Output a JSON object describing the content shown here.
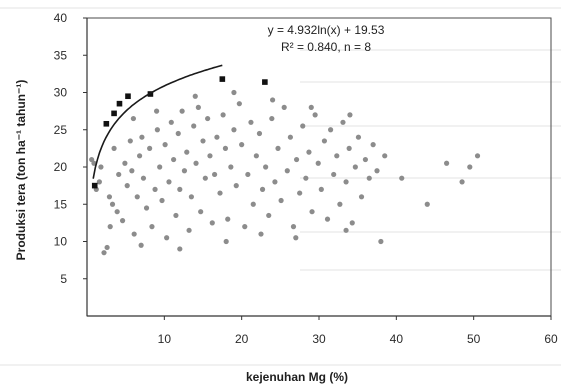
{
  "chart_data": {
    "type": "scatter",
    "title": "",
    "xlabel": "kejenuhan Mg (%)",
    "ylabel": "Produksi tera (ton ha⁻¹ tahun⁻¹)",
    "xlim": [
      0,
      60
    ],
    "ylim": [
      0,
      40
    ],
    "x_ticks": [
      "10",
      "20",
      "30",
      "40",
      "50",
      "60"
    ],
    "y_ticks": [
      "5",
      "10",
      "15",
      "20",
      "25",
      "30",
      "35",
      "40"
    ],
    "grid": false,
    "annotation": {
      "equation": "y = 4.932ln(x) + 19.53",
      "stats": "R² = 0.840, n = 8"
    },
    "trendline": {
      "type": "logarithmic",
      "a": 4.932,
      "b": 19.53,
      "x_range": [
        0.8,
        17.5
      ]
    },
    "series": [
      {
        "style": "highlight",
        "points": [
          [
            1.0,
            17.5
          ],
          [
            2.5,
            25.8
          ],
          [
            3.5,
            27.2
          ],
          [
            5.3,
            29.5
          ],
          [
            8.2,
            29.8
          ],
          [
            17.5,
            31.8
          ],
          [
            23.0,
            31.4
          ],
          [
            4.2,
            28.5
          ]
        ]
      },
      {
        "style": "grey",
        "points": [
          [
            0.6,
            21.0
          ],
          [
            0.9,
            20.5
          ],
          [
            1.2,
            17.0
          ],
          [
            1.6,
            18.0
          ],
          [
            1.8,
            20.0
          ],
          [
            2.2,
            8.5
          ],
          [
            2.6,
            9.2
          ],
          [
            2.9,
            16.0
          ],
          [
            3.3,
            15.0
          ],
          [
            3.5,
            22.5
          ],
          [
            3.9,
            14.0
          ],
          [
            4.1,
            19.0
          ],
          [
            4.6,
            12.8
          ],
          [
            4.9,
            20.5
          ],
          [
            5.2,
            17.5
          ],
          [
            5.6,
            23.5
          ],
          [
            5.8,
            19.5
          ],
          [
            6.1,
            11.0
          ],
          [
            6.5,
            16.0
          ],
          [
            6.8,
            21.5
          ],
          [
            7.1,
            24.0
          ],
          [
            7.3,
            18.5
          ],
          [
            7.7,
            14.5
          ],
          [
            8.1,
            22.5
          ],
          [
            8.4,
            12.0
          ],
          [
            8.8,
            17.0
          ],
          [
            9.1,
            25.0
          ],
          [
            9.4,
            20.0
          ],
          [
            9.7,
            15.5
          ],
          [
            10.1,
            23.0
          ],
          [
            10.3,
            10.5
          ],
          [
            10.6,
            18.0
          ],
          [
            10.9,
            26.0
          ],
          [
            11.2,
            21.0
          ],
          [
            11.5,
            13.5
          ],
          [
            11.8,
            24.5
          ],
          [
            12.0,
            17.0
          ],
          [
            12.3,
            27.5
          ],
          [
            12.6,
            19.5
          ],
          [
            12.9,
            22.0
          ],
          [
            13.2,
            11.5
          ],
          [
            13.5,
            16.0
          ],
          [
            13.8,
            25.5
          ],
          [
            14.1,
            20.5
          ],
          [
            14.4,
            28.0
          ],
          [
            14.7,
            14.0
          ],
          [
            15.0,
            23.5
          ],
          [
            15.3,
            18.5
          ],
          [
            15.6,
            26.5
          ],
          [
            15.9,
            21.5
          ],
          [
            16.2,
            12.5
          ],
          [
            16.5,
            19.0
          ],
          [
            16.8,
            24.0
          ],
          [
            17.2,
            16.5
          ],
          [
            17.6,
            27.0
          ],
          [
            17.9,
            22.5
          ],
          [
            18.2,
            13.0
          ],
          [
            18.6,
            20.0
          ],
          [
            19.0,
            25.0
          ],
          [
            19.3,
            17.5
          ],
          [
            19.7,
            28.5
          ],
          [
            20.0,
            23.0
          ],
          [
            20.4,
            12.0
          ],
          [
            20.8,
            19.0
          ],
          [
            21.2,
            26.0
          ],
          [
            21.5,
            15.0
          ],
          [
            21.9,
            21.5
          ],
          [
            22.3,
            24.5
          ],
          [
            22.7,
            17.0
          ],
          [
            23.1,
            20.0
          ],
          [
            23.5,
            13.5
          ],
          [
            23.9,
            26.5
          ],
          [
            24.3,
            18.0
          ],
          [
            24.7,
            22.5
          ],
          [
            25.1,
            15.5
          ],
          [
            25.5,
            28.0
          ],
          [
            25.9,
            19.5
          ],
          [
            26.3,
            24.0
          ],
          [
            26.7,
            12.0
          ],
          [
            27.1,
            21.0
          ],
          [
            27.5,
            16.5
          ],
          [
            27.9,
            25.5
          ],
          [
            28.3,
            18.5
          ],
          [
            28.7,
            22.0
          ],
          [
            29.1,
            14.0
          ],
          [
            29.5,
            27.0
          ],
          [
            29.9,
            20.5
          ],
          [
            30.3,
            17.0
          ],
          [
            30.7,
            23.5
          ],
          [
            31.1,
            13.0
          ],
          [
            31.5,
            25.0
          ],
          [
            31.9,
            19.0
          ],
          [
            32.3,
            21.5
          ],
          [
            32.7,
            15.0
          ],
          [
            33.1,
            26.0
          ],
          [
            33.5,
            18.0
          ],
          [
            33.9,
            22.5
          ],
          [
            34.3,
            12.5
          ],
          [
            34.7,
            20.0
          ],
          [
            35.1,
            24.0
          ],
          [
            35.5,
            16.0
          ],
          [
            36.0,
            21.0
          ],
          [
            36.5,
            18.5
          ],
          [
            37.0,
            23.0
          ],
          [
            37.5,
            19.5
          ],
          [
            38.0,
            10.0
          ],
          [
            40.7,
            18.5
          ],
          [
            44.0,
            15.0
          ],
          [
            46.5,
            20.5
          ],
          [
            48.5,
            18.0
          ],
          [
            49.5,
            20.0
          ],
          [
            50.5,
            21.5
          ],
          [
            7.0,
            9.5
          ],
          [
            12.0,
            9.0
          ],
          [
            18.0,
            10.0
          ],
          [
            22.5,
            11.0
          ],
          [
            27.0,
            10.5
          ],
          [
            33.5,
            11.5
          ],
          [
            3.0,
            12.0
          ],
          [
            6.0,
            26.5
          ],
          [
            9.0,
            27.5
          ],
          [
            14.0,
            29.5
          ],
          [
            19.0,
            30.0
          ],
          [
            24.0,
            29.0
          ],
          [
            29.0,
            28.0
          ],
          [
            34.0,
            27.0
          ],
          [
            38.5,
            21.5
          ]
        ]
      }
    ]
  }
}
